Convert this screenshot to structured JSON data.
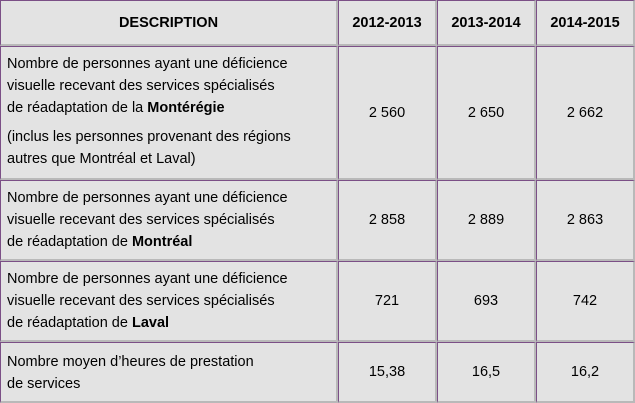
{
  "header": {
    "description": "DESCRIPTION",
    "y1": "2012-2013",
    "y2": "2013-2014",
    "y3": "2014-2015"
  },
  "rows": [
    {
      "line1": "Nombre de personnes ayant une déficience",
      "line2": "visuelle recevant des services spécialisés",
      "line3_prefix": "de réadaptation de la ",
      "line3_bold": "Montérégie",
      "note_line1": "(inclus les personnes provenant des régions",
      "note_line2": "autres que Montréal et Laval)",
      "v1": "2 560",
      "v2": "2 650",
      "v3": "2 662"
    },
    {
      "line1": "Nombre de personnes ayant une déficience",
      "line2": "visuelle recevant des services spécialisés",
      "line3_prefix": "de réadaptation de ",
      "line3_bold": "Montréal",
      "v1": "2 858",
      "v2": "2 889",
      "v3": "2 863"
    },
    {
      "line1": "Nombre de personnes ayant une déficience",
      "line2": "visuelle recevant des services spécialisés",
      "line3_prefix": "de réadaptation de ",
      "line3_bold": "Laval",
      "v1": "721",
      "v2": "693",
      "v3": "742"
    },
    {
      "line1": "Nombre moyen d’heures de prestation",
      "line2": "de services",
      "v1": "15,38",
      "v2": "16,5",
      "v3": "16,2"
    }
  ]
}
